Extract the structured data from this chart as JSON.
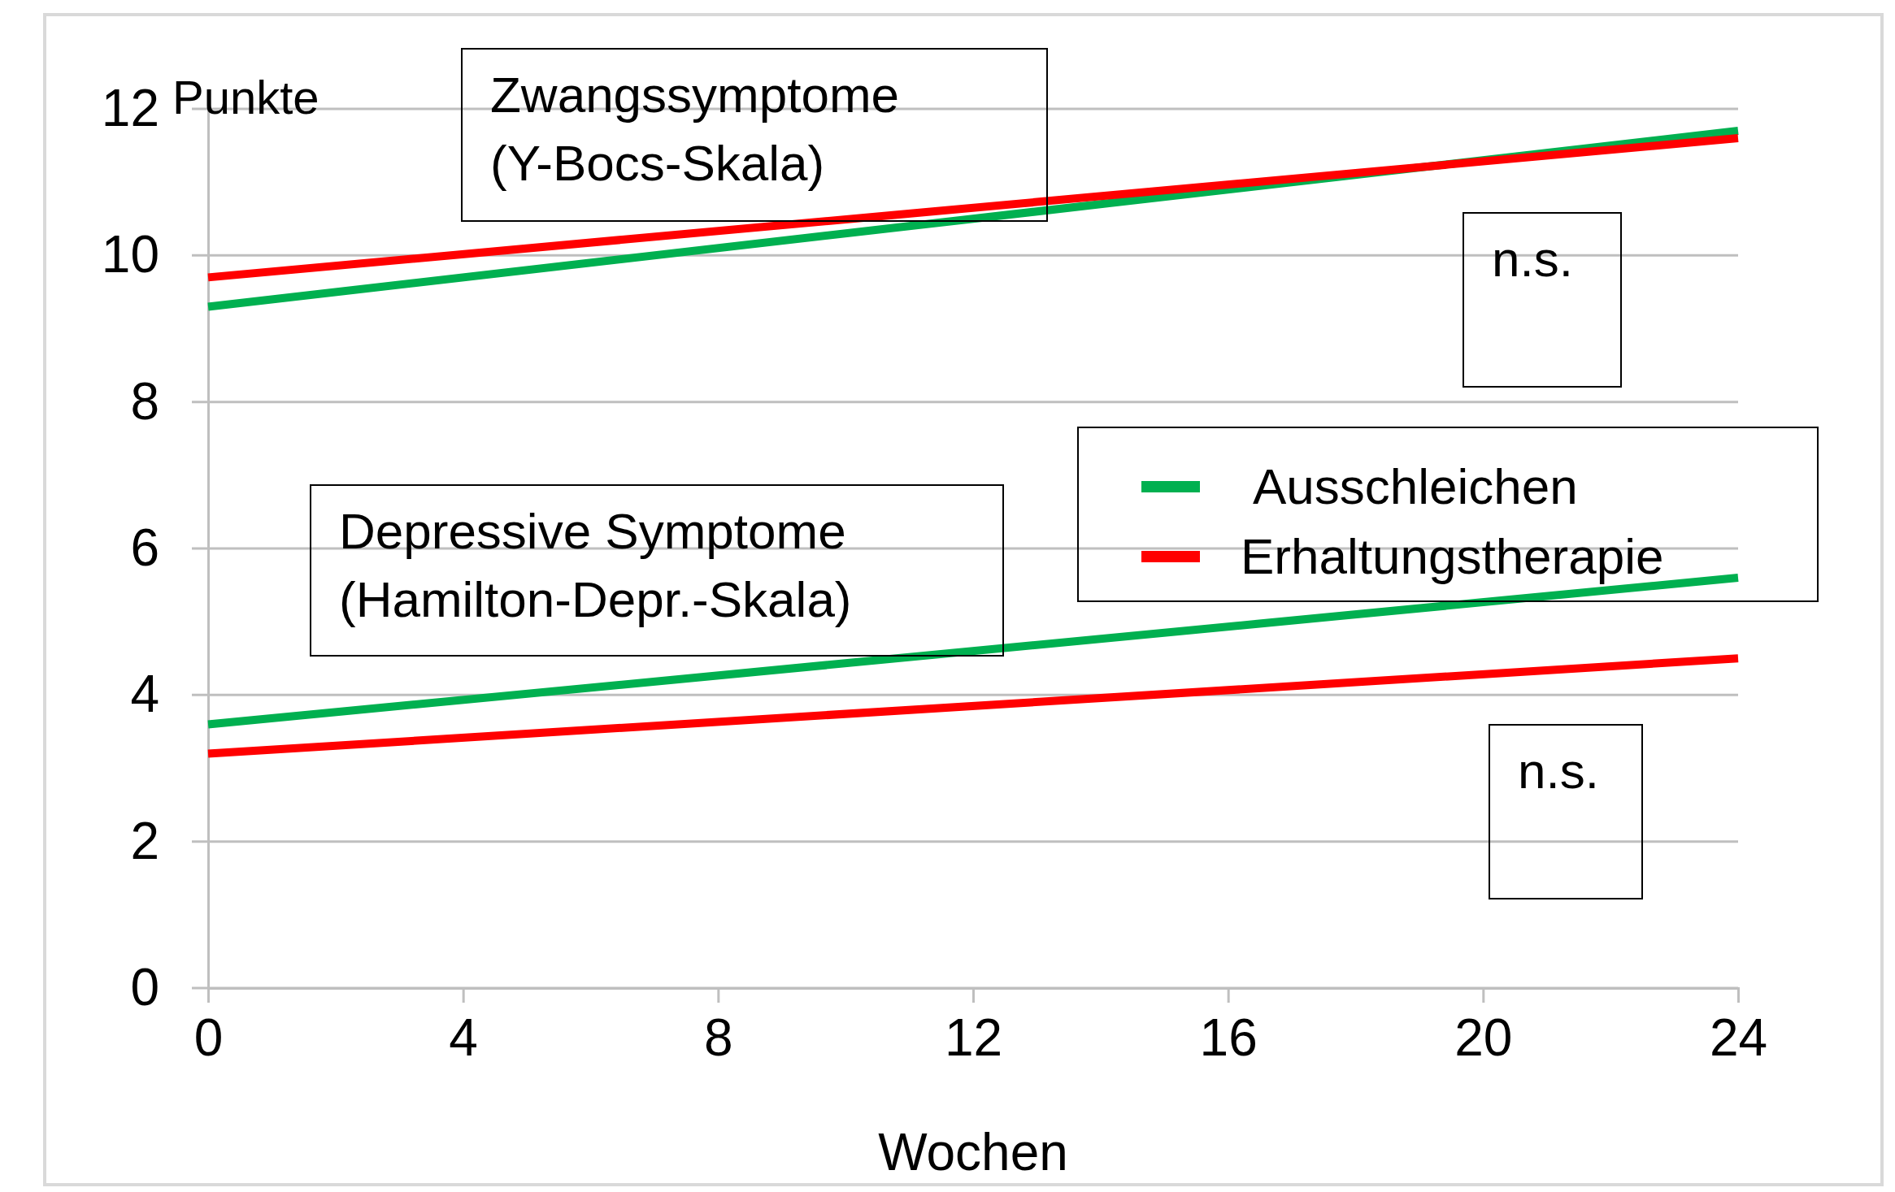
{
  "chart_data": {
    "type": "line",
    "ylabel": "Punkte",
    "xlabel": "Wochen",
    "x": [
      0,
      24
    ],
    "series": [
      {
        "name": "Ausschleichen",
        "color": "#00b050",
        "values": [
          9.3,
          11.7
        ]
      },
      {
        "name": "Erhaltungstherapie",
        "color": "#ff0000",
        "values": [
          9.7,
          11.6
        ]
      },
      {
        "color": "#00b050",
        "values": [
          3.6,
          5.6
        ]
      },
      {
        "color": "#ff0000",
        "values": [
          3.2,
          4.5
        ]
      }
    ],
    "xlim": [
      0,
      24
    ],
    "xticks": [
      0,
      4,
      8,
      12,
      16,
      20,
      24
    ],
    "ylim": [
      0,
      12
    ],
    "yticks": [
      0,
      2,
      4,
      6,
      8,
      10,
      12
    ],
    "grid": "y",
    "legend": "right",
    "marker": "none",
    "line_style": "solid",
    "annotations": [
      "Zwangssymptome\n(Y-Bocs-Skala)",
      "n.s.",
      "Depressive Symptome\n(Hamilton-Depr.-Skala)",
      "n.s."
    ]
  }
}
